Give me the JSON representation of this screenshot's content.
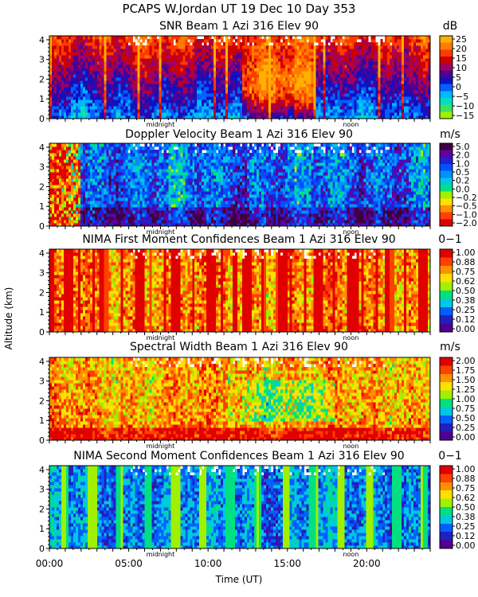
{
  "title": "PCAPS W.Jordan UT  19 Dec 10 Day 353",
  "y_axis_label": "Altitude (km)",
  "x_axis_label": "Time (UT)",
  "x_ticks": [
    "00:00",
    "05:00",
    "10:00",
    "15:00",
    "20:00"
  ],
  "x_tick_hours": [
    0,
    5,
    10,
    15,
    20
  ],
  "midnight_label": "midnight",
  "noon_label": "noon",
  "y_ticks": [
    "0",
    "1",
    "2",
    "3",
    "4"
  ],
  "chart_data": [
    {
      "type": "heatmap",
      "id": "snr",
      "title": "SNR Beam 1 Azi 316 Elev 90",
      "units": "dB",
      "xlabel": "Time (UT)",
      "ylabel": "Altitude (km)",
      "xlim": [
        0,
        24
      ],
      "ylim": [
        0,
        4.2
      ],
      "colorbar_labels": [
        "25",
        "20",
        "15",
        "10",
        "5",
        "0",
        "−5",
        "−10",
        "−15"
      ],
      "colors": [
        "#ffb000",
        "#ff7a00",
        "#ff3a00",
        "#cc0000",
        "#a00060",
        "#500090",
        "#1010c0",
        "#0060ff",
        "#00b8ff",
        "#00e0c0",
        "#40e060",
        "#a0f000"
      ]
    },
    {
      "type": "heatmap",
      "id": "doppler",
      "title": "Doppler Velocity Beam 1 Azi 316 Elev 90",
      "units": "m/s",
      "xlabel": "Time (UT)",
      "ylabel": "Altitude (km)",
      "xlim": [
        0,
        24
      ],
      "ylim": [
        0,
        4.2
      ],
      "colorbar_labels": [
        "5.0",
        "2.0",
        "1.0",
        "0.5",
        "0.2",
        "0.0",
        "−0.2",
        "−0.5",
        "−1.0",
        "−2.0"
      ],
      "colors": [
        "#400040",
        "#6000a0",
        "#2020d0",
        "#0050ff",
        "#0090ff",
        "#00c8e0",
        "#00e080",
        "#a0f000",
        "#ffe000",
        "#ff9000",
        "#ff4000",
        "#e00000"
      ]
    },
    {
      "type": "heatmap",
      "id": "nima1",
      "title": "NIMA First Moment Confidences Beam 1 Azi 316 Elev 90",
      "units": "0−1",
      "xlabel": "Time (UT)",
      "ylabel": "Altitude (km)",
      "xlim": [
        0,
        24
      ],
      "ylim": [
        0,
        4.2
      ],
      "colorbar_labels": [
        "1.00",
        "0.88",
        "0.75",
        "0.62",
        "0.50",
        "0.38",
        "0.25",
        "0.12",
        "0.00"
      ],
      "colors": [
        "#e00000",
        "#ff4000",
        "#ff9000",
        "#ffe000",
        "#a0f000",
        "#00e080",
        "#00c8e0",
        "#0060ff",
        "#2020c0",
        "#500090"
      ]
    },
    {
      "type": "heatmap",
      "id": "width",
      "title": "Spectral Width Beam 1 Azi 316 Elev 90",
      "units": "m/s",
      "xlabel": "Time (UT)",
      "ylabel": "Altitude (km)",
      "xlim": [
        0,
        24
      ],
      "ylim": [
        0,
        4.2
      ],
      "colorbar_labels": [
        "2.00",
        "1.75",
        "1.50",
        "1.25",
        "1.00",
        "0.75",
        "0.50",
        "0.25",
        "0.00"
      ],
      "colors": [
        "#e00000",
        "#ff4000",
        "#ff9000",
        "#ffe000",
        "#a0f000",
        "#00e080",
        "#00c8e0",
        "#0060ff",
        "#2020c0",
        "#500090"
      ]
    },
    {
      "type": "heatmap",
      "id": "nima2",
      "title": "NIMA Second Moment Confidences Beam 1 Azi 316 Elev 90",
      "units": "0−1",
      "xlabel": "Time (UT)",
      "ylabel": "Altitude (km)",
      "xlim": [
        0,
        24
      ],
      "ylim": [
        0,
        4.2
      ],
      "colorbar_labels": [
        "1.00",
        "0.88",
        "0.75",
        "0.62",
        "0.50",
        "0.38",
        "0.25",
        "0.12",
        "0.00"
      ],
      "colors": [
        "#e00000",
        "#ff4000",
        "#ff9000",
        "#ffe000",
        "#a0f000",
        "#00e080",
        "#00c8e0",
        "#0060ff",
        "#2020c0",
        "#500090"
      ]
    }
  ]
}
